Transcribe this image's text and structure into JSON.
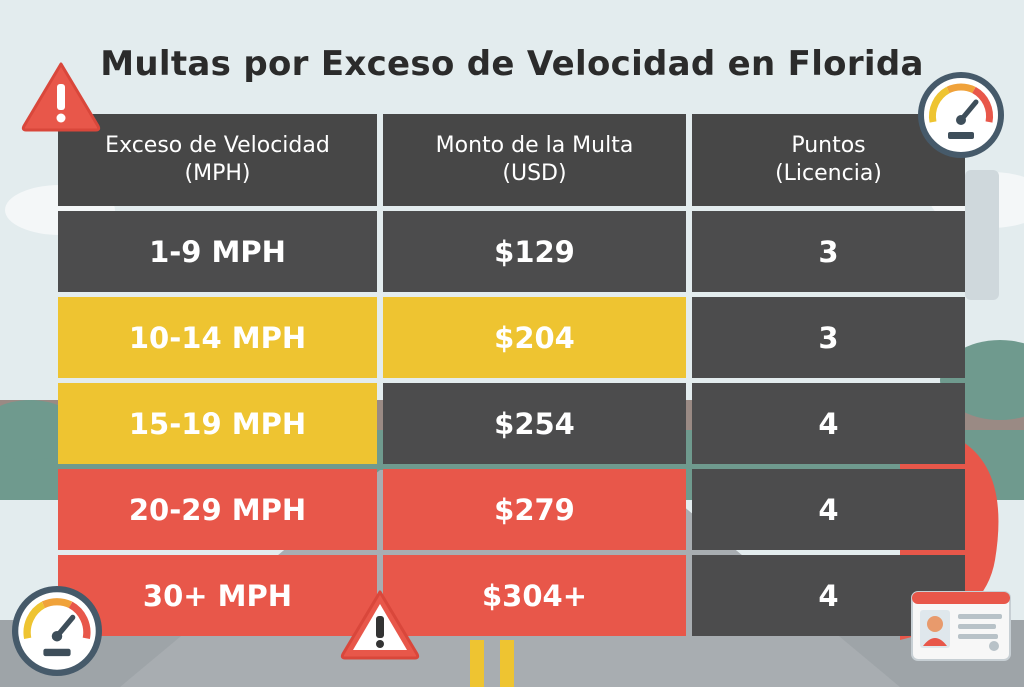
{
  "title": "Multas por Exceso de Velocidad en Florida",
  "colors": {
    "dark": "#4c4c4d",
    "yellow": "#eec431",
    "red": "#e8574a",
    "background": "#dfe9ec"
  },
  "table": {
    "headers": [
      {
        "line1": "Exceso de Velocidad",
        "line2": "(MPH)"
      },
      {
        "line1": "Monto de la Multa",
        "line2": "(USD)"
      },
      {
        "line1": "Puntos",
        "line2": "(Licencia)"
      }
    ],
    "rows": [
      {
        "speed": "1-9 MPH",
        "fine": "$129",
        "points": "3",
        "colors": [
          "dark",
          "dark",
          "dark"
        ]
      },
      {
        "speed": "10-14 MPH",
        "fine": "$204",
        "points": "3",
        "colors": [
          "yellow",
          "yellow",
          "dark"
        ]
      },
      {
        "speed": "15-19 MPH",
        "fine": "$254",
        "points": "4",
        "colors": [
          "yellow",
          "dark",
          "dark"
        ]
      },
      {
        "speed": "20-29 MPH",
        "fine": "$279",
        "points": "4",
        "colors": [
          "red",
          "red",
          "dark"
        ]
      },
      {
        "speed": "30+ MPH",
        "fine": "$304+",
        "points": "4",
        "colors": [
          "red",
          "red",
          "dark"
        ]
      }
    ]
  },
  "icons": [
    "warning-icon",
    "speedometer-icon",
    "drivers-license-icon"
  ]
}
